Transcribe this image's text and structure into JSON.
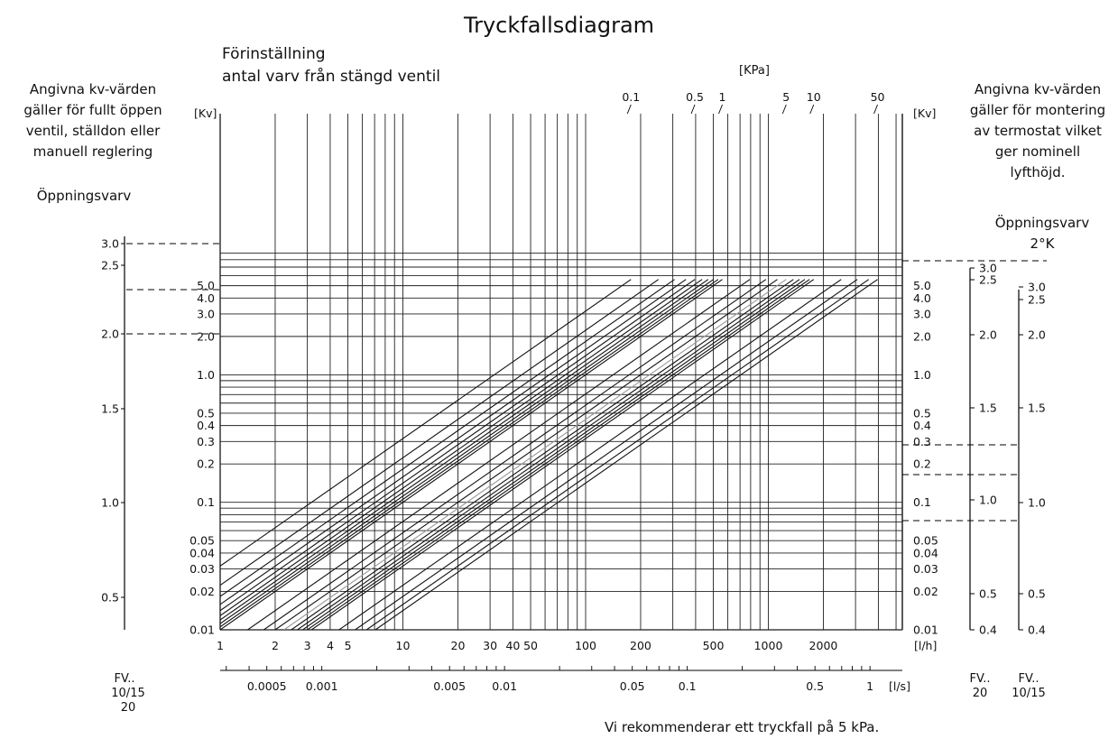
{
  "title": "Tryckfallsdiagram",
  "presetting_label_1": "Förinställning",
  "presetting_label_2": "antal varv från stängd ventil",
  "left_note": [
    "Angivna kv-värden",
    "gäller för fullt öppen",
    "ventil, ställdon eller",
    "manuell reglering"
  ],
  "right_note": [
    "Angivna kv-värden",
    "gäller för montering",
    "av termostat vilket",
    "ger nominell",
    "lyfthöjd."
  ],
  "left_opening_label": "Öppningsvarv",
  "right_opening_label_1": "Öppningsvarv",
  "right_opening_label_2": "2°K",
  "footer_note": "Vi rekommenderar ett tryckfall på 5 kPa.",
  "chart_data": {
    "type": "line",
    "x_unit_flow_lh": "[l/h]",
    "x_unit_flow_ls": "[l/s]",
    "y_unit": "[Kv]",
    "pressure_unit": "[KPa]",
    "x_ticks_lh": [
      {
        "v": 1,
        "label": "1"
      },
      {
        "v": 2,
        "label": "2"
      },
      {
        "v": 3,
        "label": "3"
      },
      {
        "v": 4,
        "label": "4"
      },
      {
        "v": 5,
        "label": "5"
      },
      {
        "v": 10,
        "label": "10"
      },
      {
        "v": 20,
        "label": "20"
      },
      {
        "v": 30,
        "label": "30"
      },
      {
        "v": 40,
        "label": "40"
      },
      {
        "v": 50,
        "label": "50"
      },
      {
        "v": 100,
        "label": "100"
      },
      {
        "v": 200,
        "label": "200"
      },
      {
        "v": 500,
        "label": "500"
      },
      {
        "v": 1000,
        "label": "1000"
      },
      {
        "v": 2000,
        "label": "2000"
      }
    ],
    "x_ticks_ls": [
      {
        "v": 0.0005,
        "label": "0.0005"
      },
      {
        "v": 0.001,
        "label": "0.001"
      },
      {
        "v": 0.005,
        "label": "0.005"
      },
      {
        "v": 0.01,
        "label": "0.01"
      },
      {
        "v": 0.05,
        "label": "0.05"
      },
      {
        "v": 0.1,
        "label": "0.1"
      },
      {
        "v": 0.5,
        "label": "0.5"
      },
      {
        "v": 1,
        "label": "1"
      }
    ],
    "y_ticks": [
      {
        "v": 5.0,
        "label": "5.0"
      },
      {
        "v": 4.0,
        "label": "4.0"
      },
      {
        "v": 3.0,
        "label": "3.0"
      },
      {
        "v": 2.0,
        "label": "2.0"
      },
      {
        "v": 1.0,
        "label": "1.0"
      },
      {
        "v": 0.5,
        "label": "0.5"
      },
      {
        "v": 0.4,
        "label": "0.4"
      },
      {
        "v": 0.3,
        "label": "0.3"
      },
      {
        "v": 0.2,
        "label": "0.2"
      },
      {
        "v": 0.1,
        "label": "0.1"
      },
      {
        "v": 0.05,
        "label": "0.05"
      },
      {
        "v": 0.04,
        "label": "0.04"
      },
      {
        "v": 0.03,
        "label": "0.03"
      },
      {
        "v": 0.02,
        "label": "0.02"
      },
      {
        "v": 0.01,
        "label": "0.01"
      }
    ],
    "pressure_lines_kpa": [
      {
        "v": 0.1,
        "label": "0.1"
      },
      {
        "v": 0.5,
        "label": "0.5"
      },
      {
        "v": 1,
        "label": "1"
      },
      {
        "v": 5,
        "label": "5"
      },
      {
        "v": 10,
        "label": "10"
      },
      {
        "v": 50,
        "label": "50"
      }
    ],
    "left_scale": {
      "turns": [
        {
          "v": 3.0,
          "label": "3.0"
        },
        {
          "v": 2.5,
          "label": "2.5"
        },
        {
          "v": 2.0,
          "label": "2.0"
        },
        {
          "v": 1.5,
          "label": "1.5"
        },
        {
          "v": 1.0,
          "label": "1.0"
        },
        {
          "v": 0.5,
          "label": "0.5"
        }
      ],
      "label_lines": [
        "FV..",
        "10/15",
        "20"
      ]
    },
    "right_scale_a": {
      "turns": [
        {
          "v": 3.0,
          "label": "3.0"
        },
        {
          "v": 2.5,
          "label": "2.5"
        },
        {
          "v": 2.0,
          "label": "2.0"
        },
        {
          "v": 1.5,
          "label": "1.5"
        },
        {
          "v": 1.0,
          "label": "1.0"
        },
        {
          "v": 0.5,
          "label": "0.5"
        },
        {
          "v": 0.4,
          "label": "0.4"
        }
      ],
      "label_lines": [
        "FV..",
        "20"
      ]
    },
    "right_scale_b": {
      "turns": [
        {
          "v": 3.0,
          "label": "3.0"
        },
        {
          "v": 2.5,
          "label": "2.5"
        },
        {
          "v": 2.0,
          "label": "2.0"
        },
        {
          "v": 1.5,
          "label": "1.5"
        },
        {
          "v": 1.0,
          "label": "1.0"
        },
        {
          "v": 0.5,
          "label": "0.5"
        },
        {
          "v": 0.4,
          "label": "0.4"
        }
      ],
      "label_lines": [
        "FV..",
        "10/15"
      ]
    }
  }
}
